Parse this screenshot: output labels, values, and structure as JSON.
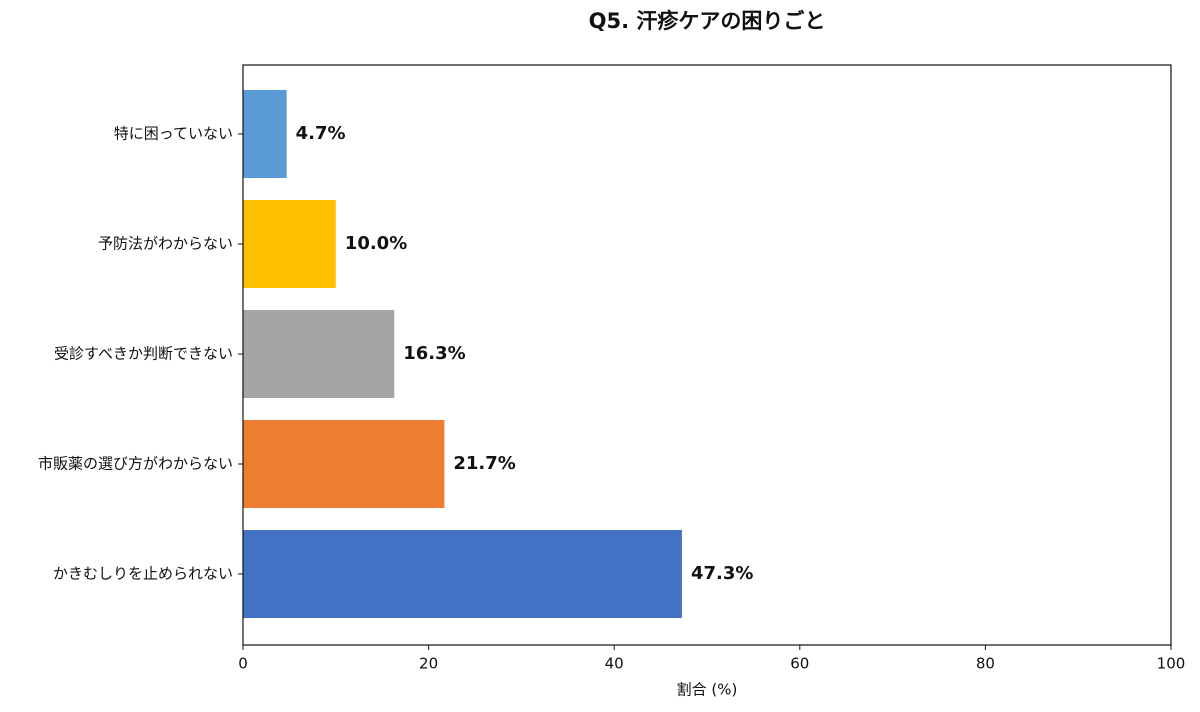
{
  "chart_data": {
    "type": "barh",
    "title": "Q5. 汗疹ケアの困りごと",
    "x_label": "割合 (%)",
    "categories": [
      "特に困っていない",
      "予防法がわからない",
      "受診すべきか判断できない",
      "市販薬の選び方がわからない",
      "かきむしりを止められない"
    ],
    "values": [
      4.7,
      10.0,
      16.3,
      21.7,
      47.3
    ],
    "value_labels": [
      "4.7%",
      "10.0%",
      "16.3%",
      "21.7%",
      "47.3%"
    ],
    "colors": [
      "#5b9bd5",
      "#ffc000",
      "#a5a5a5",
      "#ed7d31",
      "#4472c4"
    ],
    "xlim": [
      0,
      100
    ],
    "xticks": [
      0,
      20,
      40,
      60,
      80,
      100
    ],
    "grid": false
  }
}
